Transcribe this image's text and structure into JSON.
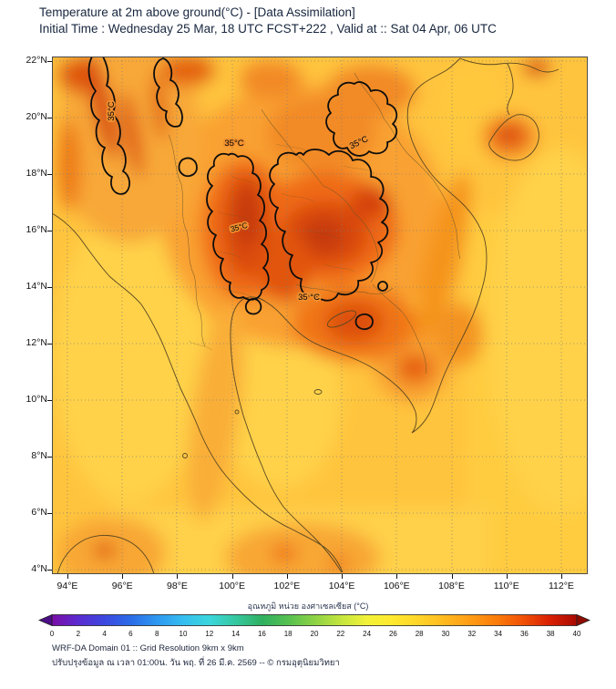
{
  "header": {
    "title": "Temperature at 2m above ground(°C) - [Data Assimilation]",
    "subtitle": "Initial Time : Wednesday 25 Mar, 18 UTC FCST+222 , Valid at :: Sat 04 Apr, 06 UTC"
  },
  "map": {
    "y_ticks": [
      "22°N",
      "20°N",
      "18°N",
      "16°N",
      "14°N",
      "12°N",
      "10°N",
      "8°N",
      "6°N",
      "4°N"
    ],
    "x_ticks": [
      "94°E",
      "96°E",
      "98°E",
      "100°E",
      "102°E",
      "104°E",
      "106°E",
      "108°E",
      "110°E",
      "112°E"
    ],
    "contour_labels": [
      {
        "text": "35°C"
      },
      {
        "text": "35°C"
      },
      {
        "text": "35°C"
      },
      {
        "text": "35°C"
      },
      {
        "text": "35 °C"
      }
    ]
  },
  "colorbar": {
    "label": "อุณหภูมิ หน่วย องศาเซลเซียส (°C)",
    "min": 0,
    "max": 40,
    "ticks": [
      "0",
      "2",
      "4",
      "6",
      "8",
      "10",
      "12",
      "14",
      "16",
      "18",
      "20",
      "22",
      "24",
      "26",
      "28",
      "30",
      "32",
      "34",
      "36",
      "38",
      "40"
    ],
    "arrow_left_color": "#4B0E86",
    "arrow_right_color": "#8E0B02",
    "stops": [
      {
        "value": 0,
        "color": "#7A0DA6"
      },
      {
        "value": 2,
        "color": "#5B2BD0"
      },
      {
        "value": 4,
        "color": "#3D48E0"
      },
      {
        "value": 6,
        "color": "#2B6BE8"
      },
      {
        "value": 8,
        "color": "#2E97F0"
      },
      {
        "value": 10,
        "color": "#35BEF0"
      },
      {
        "value": 12,
        "color": "#3BD6DC"
      },
      {
        "value": 14,
        "color": "#35C8A0"
      },
      {
        "value": 16,
        "color": "#2FB060"
      },
      {
        "value": 18,
        "color": "#55C050"
      },
      {
        "value": 20,
        "color": "#8CD245"
      },
      {
        "value": 22,
        "color": "#C3E53E"
      },
      {
        "value": 24,
        "color": "#F2F238"
      },
      {
        "value": 26,
        "color": "#FFE92E"
      },
      {
        "value": 28,
        "color": "#FFD428"
      },
      {
        "value": 30,
        "color": "#FFB81E"
      },
      {
        "value": 32,
        "color": "#FF9A14"
      },
      {
        "value": 34,
        "color": "#FA7A0A"
      },
      {
        "value": 36,
        "color": "#F04E06"
      },
      {
        "value": 38,
        "color": "#D81E04"
      },
      {
        "value": 40,
        "color": "#A80A02"
      }
    ]
  },
  "footer": {
    "line1": "WRF-DA Domain 01 :: Grid Resolution 9km x 9km",
    "line2": "ปรับปรุงข้อมูล ณ เวลา 01:00น. วัน พฤ. ที่ 26 มี.ค. 2569 -- © กรมอุตุนิยมวิทยา"
  },
  "chart_data": {
    "type": "heatmap",
    "title": "Temperature at 2m above ground (°C) - [Data Assimilation]",
    "initial_time": "Wednesday 25 Mar, 18 UTC",
    "forecast": "FCST+222",
    "valid_time": "Sat 04 Apr, 06 UTC",
    "x_axis": {
      "unit": "°E",
      "range": [
        94,
        112
      ],
      "ticks": [
        94,
        96,
        98,
        100,
        102,
        104,
        106,
        108,
        110,
        112
      ]
    },
    "y_axis": {
      "unit": "°N",
      "range": [
        4,
        22
      ],
      "ticks": [
        4,
        6,
        8,
        10,
        12,
        14,
        16,
        18,
        20,
        22
      ]
    },
    "colorbar": {
      "label": "อุณหภูมิ หน่วย องศาเซลเซียส (°C)",
      "unit": "°C",
      "range": [
        0,
        40
      ],
      "tick_step": 2
    },
    "contour_level_labeled_c": 35,
    "grid_estimated": {
      "lons": [
        95,
        97,
        99,
        101,
        103,
        105,
        107,
        109,
        111
      ],
      "lats": [
        21,
        19,
        17,
        15,
        13,
        11,
        9,
        7,
        5
      ],
      "values_c": [
        [
          36,
          34,
          33,
          33,
          34,
          34,
          31,
          30,
          33
        ],
        [
          35,
          34,
          34,
          35,
          34,
          35,
          32,
          34,
          30
        ],
        [
          33,
          33,
          34,
          36,
          36,
          36,
          33,
          30,
          29
        ],
        [
          31,
          32,
          34,
          36,
          36,
          35,
          33,
          30,
          29
        ],
        [
          30,
          31,
          33,
          34,
          35,
          35,
          33,
          30,
          29
        ],
        [
          30,
          30,
          31,
          30,
          33,
          34,
          32,
          29,
          29
        ],
        [
          30,
          31,
          32,
          30,
          30,
          30,
          31,
          29,
          29
        ],
        [
          30,
          30,
          33,
          32,
          30,
          29,
          29,
          29,
          29
        ],
        [
          33,
          34,
          32,
          33,
          34,
          29,
          29,
          29,
          30
        ]
      ]
    },
    "hot_regions_above_35c": [
      "Northern and Central Thailand (99.5-101.5E, 14-18.5N)",
      "Northeast Thailand and central Laos (101.5-106E, 13.5-19.5N)",
      "Western Myanmar valleys (94.5-96.5E, 17-22N)",
      "Northern Laos / Vietnam border area (103.5-106E, 18.5-21.5N)"
    ]
  }
}
